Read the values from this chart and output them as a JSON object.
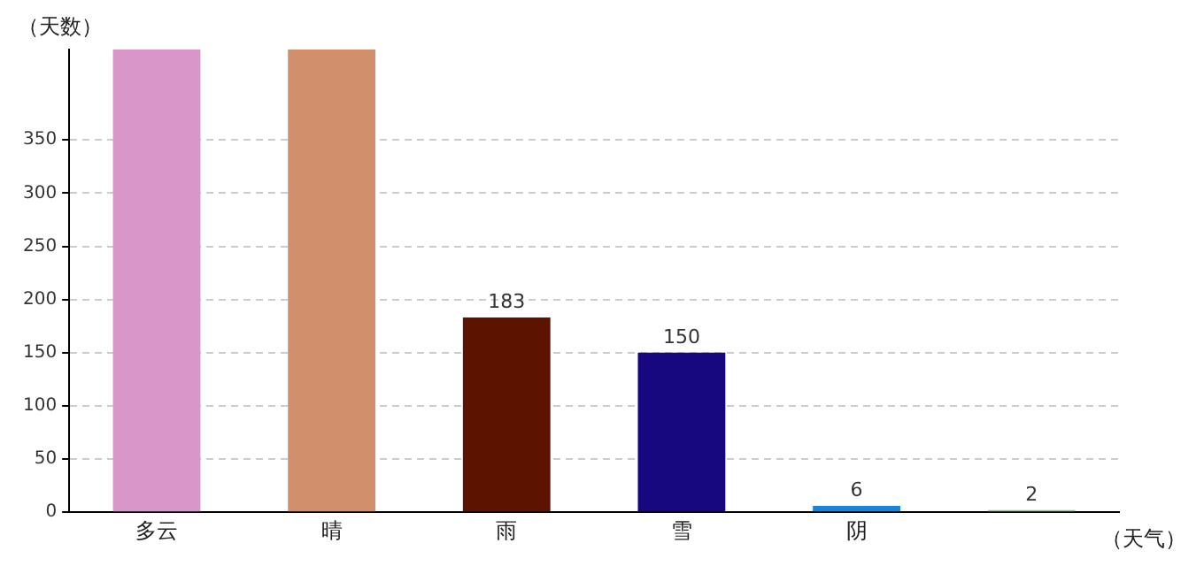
{
  "chart_data": {
    "type": "bar",
    "ylabel": "（天数）",
    "xlabel": "（天气）",
    "categories": [
      "多云",
      "晴",
      "雨",
      "雪",
      "阴",
      null
    ],
    "values": [
      435,
      435,
      183,
      150,
      6,
      2
    ],
    "colors": [
      "#d896c9",
      "#d28f6c",
      "#5c1400",
      "#170880",
      "#1a84d8",
      "#8fc98f"
    ],
    "value_labels": [
      null,
      null,
      "183",
      "150",
      "6",
      "2"
    ],
    "ylim": [
      0,
      435
    ],
    "yticks": [
      0,
      50,
      100,
      150,
      200,
      250,
      300,
      350
    ],
    "grid": "y",
    "legend": false
  }
}
